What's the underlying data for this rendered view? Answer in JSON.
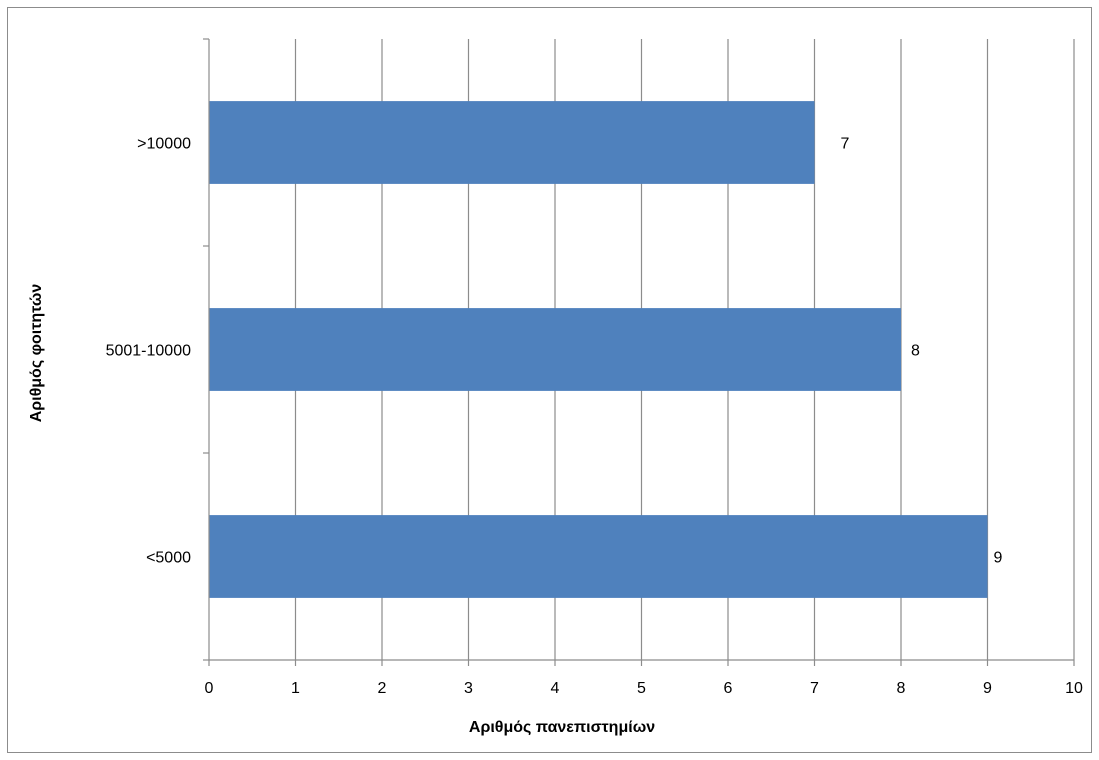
{
  "chart_data": {
    "type": "bar",
    "orientation": "horizontal",
    "categories": [
      "<5000",
      "5001-10000",
      ">10000"
    ],
    "values": [
      9,
      8,
      7
    ],
    "data_labels": [
      "9",
      "8",
      "7"
    ],
    "xlabel": "Αριθμός πανεπιστημίων",
    "ylabel": "Αριθμός φοιτητών",
    "xlim": [
      0,
      10
    ],
    "x_ticks": [
      "0",
      "1",
      "2",
      "3",
      "4",
      "5",
      "6",
      "7",
      "8",
      "9",
      "10"
    ],
    "grid": "vertical",
    "legend": "none",
    "colors": {
      "bar": "#4f81bd",
      "grid": "#8c8c8c",
      "axis": "#8c8c8c"
    }
  }
}
